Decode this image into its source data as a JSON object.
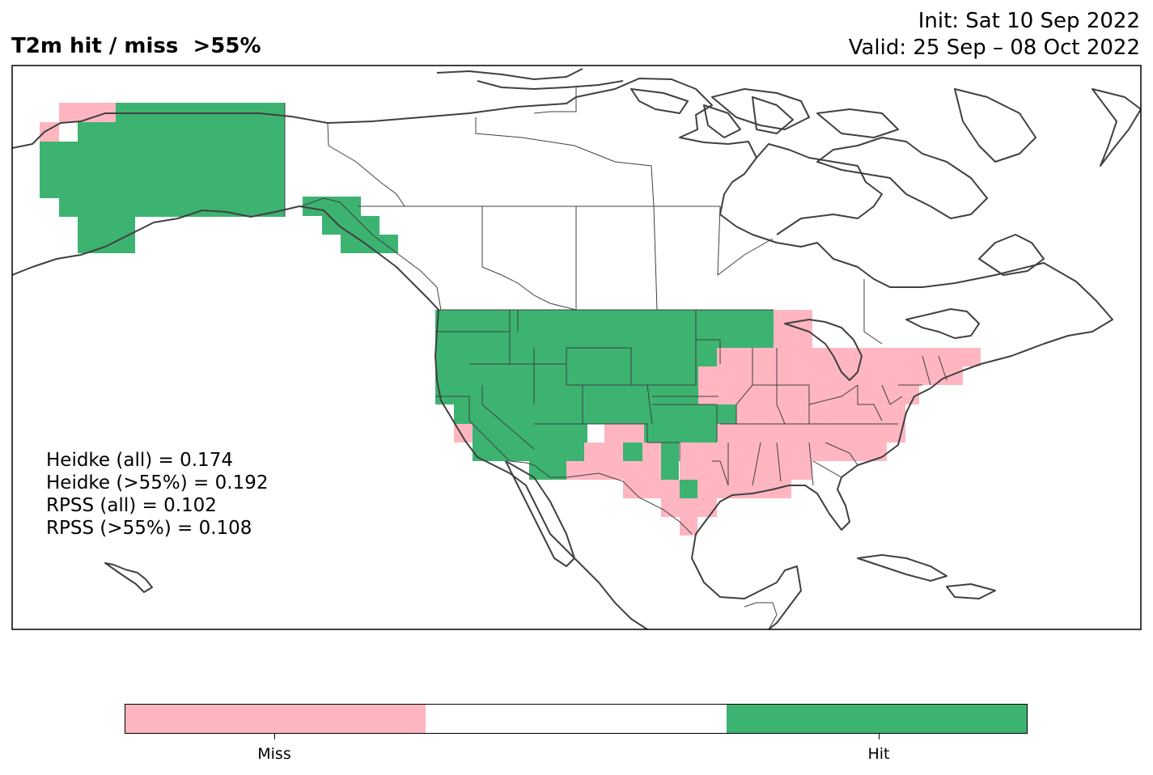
{
  "title": "T2m hit / miss  >55%",
  "init_text": "Init: Sat 10 Sep 2022",
  "valid_text": "Valid: 25 Sep – 08 Oct 2022",
  "stats": [
    "Heidke (all) = 0.174",
    "Heidke (>55%) = 0.192",
    "RPSS (all) = 0.102",
    "RPSS (>55%) = 0.108"
  ],
  "colors": {
    "hit": "#3cb371",
    "miss": "#ffb6c1",
    "neutral": "#ffffff",
    "coast": "#404040"
  },
  "colorbar": {
    "segments": [
      {
        "name": "miss",
        "color": "#ffb6c1"
      },
      {
        "name": "neutral",
        "color": "#ffffff"
      },
      {
        "name": "hit",
        "color": "#3cb371"
      }
    ],
    "labels": [
      "Miss",
      "Hit"
    ]
  }
}
